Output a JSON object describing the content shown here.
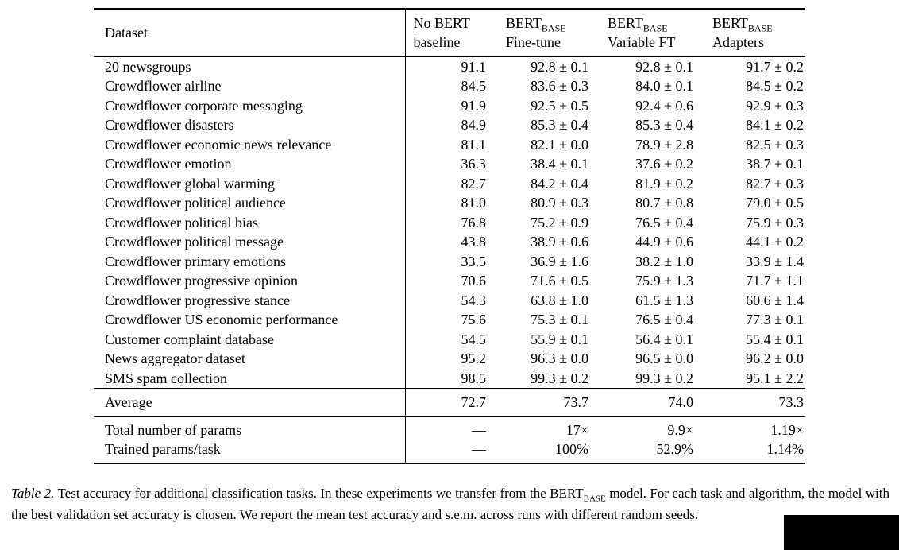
{
  "table": {
    "dataset_header": "Dataset",
    "columns": [
      {
        "line1": "No BERT",
        "sub": "",
        "line2": "baseline"
      },
      {
        "line1": "BERT",
        "sub": "BASE",
        "line2": "Fine-tune"
      },
      {
        "line1": "BERT",
        "sub": "BASE",
        "line2": "Variable FT"
      },
      {
        "line1": "BERT",
        "sub": "BASE",
        "line2": "Adapters"
      }
    ],
    "rows": [
      {
        "name": "20 newsgroups",
        "values": [
          "91.1",
          "92.8 ± 0.1",
          "92.8 ± 0.1",
          "91.7 ± 0.2"
        ]
      },
      {
        "name": "Crowdflower airline",
        "values": [
          "84.5",
          "83.6 ± 0.3",
          "84.0 ± 0.1",
          "84.5 ± 0.2"
        ]
      },
      {
        "name": "Crowdflower corporate messaging",
        "values": [
          "91.9",
          "92.5 ± 0.5",
          "92.4 ± 0.6",
          "92.9 ± 0.3"
        ]
      },
      {
        "name": "Crowdflower disasters",
        "values": [
          "84.9",
          "85.3 ± 0.4",
          "85.3 ± 0.4",
          "84.1 ± 0.2"
        ]
      },
      {
        "name": "Crowdflower economic news relevance",
        "values": [
          "81.1",
          "82.1 ± 0.0",
          "78.9 ± 2.8",
          "82.5 ± 0.3"
        ]
      },
      {
        "name": "Crowdflower emotion",
        "values": [
          "36.3",
          "38.4 ± 0.1",
          "37.6 ± 0.2",
          "38.7 ± 0.1"
        ]
      },
      {
        "name": "Crowdflower global warming",
        "values": [
          "82.7",
          "84.2 ± 0.4",
          "81.9 ± 0.2",
          "82.7 ± 0.3"
        ]
      },
      {
        "name": "Crowdflower political audience",
        "values": [
          "81.0",
          "80.9 ± 0.3",
          "80.7 ± 0.8",
          "79.0 ± 0.5"
        ]
      },
      {
        "name": "Crowdflower political bias",
        "values": [
          "76.8",
          "75.2 ± 0.9",
          "76.5 ± 0.4",
          "75.9 ± 0.3"
        ]
      },
      {
        "name": "Crowdflower political message",
        "values": [
          "43.8",
          "38.9 ± 0.6",
          "44.9 ± 0.6",
          "44.1 ± 0.2"
        ]
      },
      {
        "name": "Crowdflower primary emotions",
        "values": [
          "33.5",
          "36.9 ± 1.6",
          "38.2 ± 1.0",
          "33.9 ± 1.4"
        ]
      },
      {
        "name": "Crowdflower progressive opinion",
        "values": [
          "70.6",
          "71.6 ± 0.5",
          "75.9 ± 1.3",
          "71.7 ± 1.1"
        ]
      },
      {
        "name": "Crowdflower progressive stance",
        "values": [
          "54.3",
          "63.8 ± 1.0",
          "61.5 ± 1.3",
          "60.6 ± 1.4"
        ]
      },
      {
        "name": "Crowdflower US economic performance",
        "values": [
          "75.6",
          "75.3 ± 0.1",
          "76.5 ± 0.4",
          "77.3 ± 0.1"
        ]
      },
      {
        "name": "Customer complaint database",
        "values": [
          "54.5",
          "55.9 ± 0.1",
          "56.4 ± 0.1",
          "55.4 ± 0.1"
        ]
      },
      {
        "name": "News aggregator dataset",
        "values": [
          "95.2",
          "96.3 ± 0.0",
          "96.5 ± 0.0",
          "96.2 ± 0.0"
        ]
      },
      {
        "name": "SMS spam collection",
        "values": [
          "98.5",
          "99.3 ± 0.2",
          "99.3 ± 0.2",
          "95.1 ± 2.2"
        ]
      }
    ],
    "average": {
      "name": "Average",
      "values": [
        "72.7",
        "73.7",
        "74.0",
        "73.3"
      ]
    },
    "params_rows": [
      {
        "name": "Total number of params",
        "values": [
          "—",
          "17×",
          "9.9×",
          "1.19×"
        ]
      },
      {
        "name": "Trained params/task",
        "values": [
          "—",
          "100%",
          "52.9%",
          "1.14%"
        ]
      }
    ]
  },
  "caption": {
    "label": "Table 2.",
    "before": " Test accuracy for additional classification tasks. In these experiments we transfer from the ",
    "bert": "BERT",
    "bert_sub": "BASE",
    "after": " model. For each task and algorithm, the model with the best validation set accuracy is chosen. We report the mean test accuracy and s.e.m. across runs with different random seeds."
  }
}
